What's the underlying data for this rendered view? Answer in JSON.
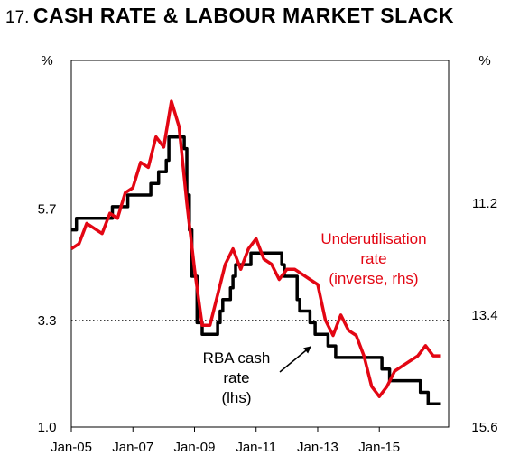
{
  "figure": {
    "number": "17.",
    "title": "CASH RATE & LABOUR MARKET SLACK"
  },
  "chart_data": {
    "type": "line",
    "x_ticks": [
      "Jan-05",
      "Jan-07",
      "Jan-09",
      "Jan-11",
      "Jan-13",
      "Jan-15"
    ],
    "xlim": [
      "Jan-05",
      "Apr-17"
    ],
    "left_axis": {
      "unit": "%",
      "ylim": [
        1.0,
        8.9
      ],
      "ticks": [
        "1.0",
        "3.3",
        "5.7"
      ]
    },
    "right_axis": {
      "unit": "%",
      "inverted": true,
      "ylim": [
        15.6,
        8.4
      ],
      "ticks": [
        "11.2",
        "13.4",
        "15.6"
      ]
    },
    "gridlines": "horizontal dotted",
    "series": [
      {
        "name": "RBA cash rate (lhs)",
        "color": "#000000",
        "axis": "left",
        "step": true,
        "x": [
          "2005-01",
          "2005-03",
          "2006-05",
          "2006-08",
          "2006-11",
          "2007-08",
          "2007-11",
          "2008-02",
          "2008-03",
          "2008-09",
          "2008-10",
          "2008-11",
          "2008-12",
          "2009-02",
          "2009-04",
          "2009-10",
          "2009-11",
          "2009-12",
          "2010-03",
          "2010-04",
          "2010-05",
          "2010-11",
          "2011-11",
          "2011-12",
          "2012-05",
          "2012-06",
          "2012-10",
          "2012-12",
          "2013-05",
          "2013-08",
          "2014-01",
          "2015-02",
          "2015-05",
          "2016-05",
          "2016-08",
          "2017-01"
        ],
        "values": [
          5.25,
          5.5,
          5.75,
          5.75,
          6.0,
          6.25,
          6.5,
          6.75,
          7.25,
          7.0,
          6.0,
          5.25,
          4.25,
          3.25,
          3.0,
          3.25,
          3.5,
          3.75,
          4.0,
          4.25,
          4.5,
          4.75,
          4.5,
          4.25,
          3.75,
          3.5,
          3.25,
          3.0,
          2.75,
          2.5,
          2.5,
          2.25,
          2.0,
          1.75,
          1.5,
          1.5
        ]
      },
      {
        "name": "Underutilisation rate (inverse, rhs)",
        "color": "#e30613",
        "axis": "right",
        "x": [
          "2005-01",
          "2005-04",
          "2005-07",
          "2005-10",
          "2006-01",
          "2006-04",
          "2006-07",
          "2006-10",
          "2007-01",
          "2007-04",
          "2007-07",
          "2007-10",
          "2008-01",
          "2008-04",
          "2008-07",
          "2008-10",
          "2009-01",
          "2009-04",
          "2009-07",
          "2009-10",
          "2010-01",
          "2010-04",
          "2010-07",
          "2010-10",
          "2011-01",
          "2011-04",
          "2011-07",
          "2011-10",
          "2012-01",
          "2012-04",
          "2012-07",
          "2012-10",
          "2013-01",
          "2013-04",
          "2013-07",
          "2013-10",
          "2014-01",
          "2014-04",
          "2014-07",
          "2014-10",
          "2015-01",
          "2015-04",
          "2015-07",
          "2015-10",
          "2016-01",
          "2016-04",
          "2016-07",
          "2016-10",
          "2017-01"
        ],
        "values": [
          12.1,
          12.0,
          11.6,
          11.7,
          11.8,
          11.4,
          11.5,
          11.0,
          10.9,
          10.4,
          10.5,
          9.9,
          10.1,
          9.2,
          9.7,
          11.2,
          12.5,
          13.6,
          13.6,
          13.0,
          12.4,
          12.1,
          12.5,
          12.1,
          11.9,
          12.3,
          12.4,
          12.7,
          12.5,
          12.5,
          12.6,
          12.7,
          12.8,
          13.5,
          13.8,
          13.4,
          13.7,
          13.8,
          14.2,
          14.8,
          15.0,
          14.8,
          14.5,
          14.4,
          14.3,
          14.2,
          14.0,
          14.2,
          14.2
        ]
      }
    ],
    "annotations": [
      {
        "lines": [
          "Underutilisation",
          "rate",
          "(inverse, rhs)"
        ],
        "color": "#e30613"
      },
      {
        "lines": [
          "RBA cash",
          "rate",
          "(lhs)"
        ],
        "color": "#000000",
        "arrow": true
      }
    ]
  }
}
